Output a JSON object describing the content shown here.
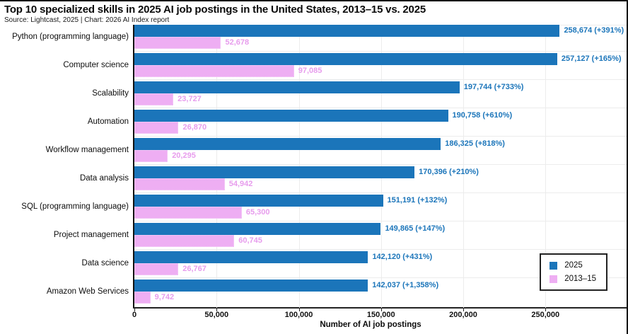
{
  "title": "Top 10 specialized skills in 2025 AI job postings in the United States, 2013–15 vs. 2025",
  "source": "Source: Lightcast, 2025 | Chart: 2026 AI Index report",
  "colors": {
    "bar_2025": "#1b75ba",
    "bar_2013_15": "#eeaef3",
    "label_2025": "#1b75ba",
    "label_2013_15": "#e79ced",
    "grid": "#ececec",
    "axis": "#111111"
  },
  "legend": {
    "position": "lower right",
    "items": [
      {
        "label": "2025",
        "color": "#1b75ba"
      },
      {
        "label": "2013–15",
        "color": "#eeaef3"
      }
    ]
  },
  "chart_data": {
    "type": "bar",
    "orientation": "horizontal",
    "title": "Top 10 specialized skills in 2025 AI job postings in the United States, 2013–15 vs. 2025",
    "xlabel": "Number of AI job postings",
    "ylabel": "",
    "xlim": [
      0,
      287300
    ],
    "xticks": [
      0,
      50000,
      100000,
      150000,
      200000,
      250000
    ],
    "xtick_labels": [
      "0",
      "50,000",
      "100,000",
      "150,000",
      "200,000",
      "250,000"
    ],
    "grid": true,
    "legend_position": "lower right",
    "categories": [
      "Python (programming language)",
      "Computer science",
      "Scalability",
      "Automation",
      "Workflow management",
      "Data analysis",
      "SQL (programming language)",
      "Project management",
      "Data science",
      "Amazon Web Services"
    ],
    "series": [
      {
        "name": "2025",
        "color": "#1b75ba",
        "values": [
          258674,
          257127,
          197744,
          190758,
          186325,
          170396,
          151191,
          149865,
          142120,
          142037
        ],
        "labels": [
          "258,674 (+391%)",
          "257,127 (+165%)",
          "197,744 (+733%)",
          "190,758 (+610%)",
          "186,325 (+818%)",
          "170,396 (+210%)",
          "151,191 (+132%)",
          "149,865 (+147%)",
          "142,120 (+431%)",
          "142,037 (+1,358%)"
        ]
      },
      {
        "name": "2013–15",
        "color": "#eeaef3",
        "values": [
          52678,
          97085,
          23727,
          26870,
          20295,
          54942,
          65300,
          60745,
          26767,
          9742
        ],
        "labels": [
          "52,678",
          "97,085",
          "23,727",
          "26,870",
          "20,295",
          "54,942",
          "65,300",
          "60,745",
          "26,767",
          "9,742"
        ]
      }
    ]
  }
}
